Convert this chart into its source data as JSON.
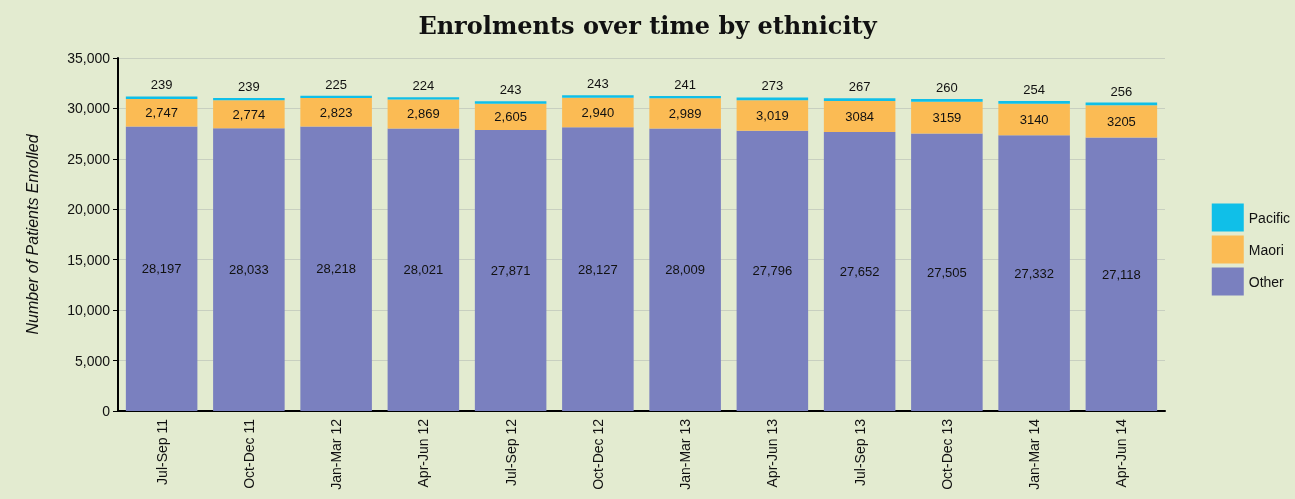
{
  "chart_data": {
    "type": "bar",
    "title": "Enrolments over time by ethnicity",
    "ylabel": "Number of Patients Enrolled",
    "categories": [
      "Jul-Sep 11",
      "Oct-Dec 11",
      "Jan-Mar 12",
      "Apr-Jun 12",
      "Jul-Sep 12",
      "Oct-Dec 12",
      "Jan-Mar 13",
      "Apr-Jun 13",
      "Jul-Sep 13",
      "Oct-Dec 13",
      "Jan-Mar 14",
      "Apr-Jun 14"
    ],
    "stacked": true,
    "series": [
      {
        "name": "Other",
        "color": "#7a80bf",
        "values": [
          28197,
          28033,
          28218,
          28021,
          27871,
          28127,
          28009,
          27796,
          27652,
          27505,
          27332,
          27118
        ],
        "value_labels": [
          "28,197",
          "28,033",
          "28,218",
          "28,021",
          "27,871",
          "28,127",
          "28,009",
          "27,796",
          "27,652",
          "27,505",
          "27,332",
          "27,118"
        ]
      },
      {
        "name": "Maori",
        "color": "#fbbb54",
        "values": [
          2747,
          2774,
          2823,
          2869,
          2605,
          2940,
          2989,
          3019,
          3084,
          3159,
          3140,
          3205
        ],
        "value_labels": [
          "2,747",
          "2,774",
          "2,823",
          "2,869",
          "2,605",
          "2,940",
          "2,989",
          "3,019",
          "3084",
          "3159",
          "3140",
          "3205"
        ]
      },
      {
        "name": "Pacific",
        "color": "#10bfe8",
        "values": [
          239,
          239,
          225,
          224,
          243,
          243,
          241,
          273,
          267,
          260,
          254,
          256
        ],
        "value_labels": [
          "239",
          "239",
          "225",
          "224",
          "243",
          "243",
          "241",
          "273",
          "267",
          "260",
          "254",
          "256"
        ]
      }
    ],
    "ylim": [
      0,
      35000
    ],
    "yticks": [
      {
        "value": 0,
        "label": "0"
      },
      {
        "value": 5000,
        "label": "5,000"
      },
      {
        "value": 10000,
        "label": "10,000"
      },
      {
        "value": 15000,
        "label": "15,000"
      },
      {
        "value": 20000,
        "label": "20,000"
      },
      {
        "value": 25000,
        "label": "25,000"
      },
      {
        "value": 30000,
        "label": "30,000"
      },
      {
        "value": 35000,
        "label": "35,000"
      }
    ],
    "grid": "y",
    "legend": "right"
  }
}
